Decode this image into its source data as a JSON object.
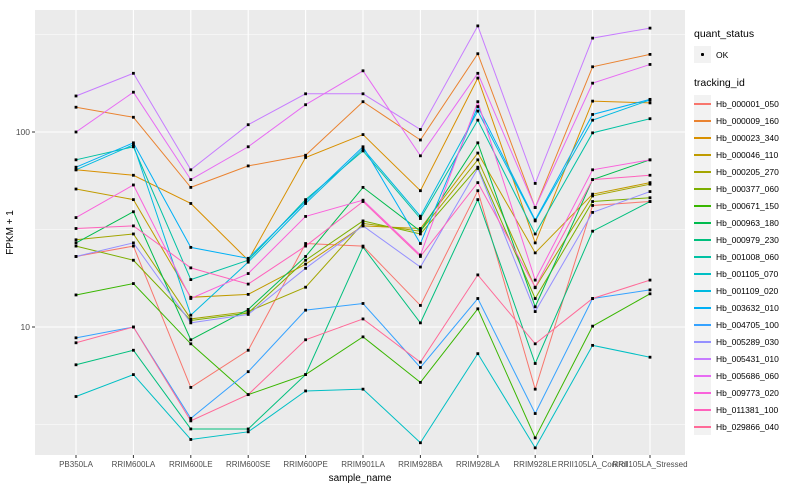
{
  "legend": {
    "quant_status_title": "quant_status",
    "ok_label": "OK",
    "tracking_id_title": "tracking_id"
  },
  "chart_data": {
    "type": "line",
    "title": "",
    "xlabel": "sample_name",
    "ylabel": "FPKM + 1",
    "y_scale": "log10",
    "y_ticks": [
      10,
      100
    ],
    "y_minor_ticks": [
      3.162,
      31.62,
      316.2
    ],
    "ylim": [
      2.2,
      430
    ],
    "grid": "on",
    "legend_position": "right",
    "panel_background": "#EBEBEB",
    "gridline_color": "#FFFFFF",
    "point_color": "#000000",
    "categories": [
      "PB350LA",
      "RRIM600LA",
      "RRIM600LE",
      "RRIM600SE",
      "RRIM600PE",
      "RRIM901LA",
      "RRIM928BA",
      "RRIM928LA",
      "RRIM928LE",
      "RRII105LA_Control",
      "RRII105LA_Stressed"
    ],
    "series": [
      {
        "name": "Hb_000001_050",
        "color": "#F8766D",
        "values": [
          23,
          26,
          4.9,
          7.6,
          26.8,
          26,
          12.9,
          50,
          4.8,
          42,
          44
        ]
      },
      {
        "name": "Hb_000009_160",
        "color": "#EA8331",
        "values": [
          134,
          119,
          52,
          67,
          76,
          143,
          91,
          252,
          41,
          216,
          250
        ]
      },
      {
        "name": "Hb_000023_340",
        "color": "#D89000",
        "values": [
          64,
          60,
          43,
          22,
          74,
          97,
          50,
          189,
          27,
          144,
          141
        ]
      },
      {
        "name": "Hb_000046_110",
        "color": "#C09B00",
        "values": [
          51,
          45,
          14.2,
          14.7,
          21,
          33,
          32,
          78,
          24,
          48,
          55
        ]
      },
      {
        "name": "Hb_000205_270",
        "color": "#A3A500",
        "values": [
          28,
          30,
          11,
          12,
          16,
          34,
          31,
          72,
          15.9,
          47,
          54
        ]
      },
      {
        "name": "Hb_000377_060",
        "color": "#7CAE00",
        "values": [
          26,
          22,
          10.8,
          11.8,
          22,
          35,
          30,
          66,
          14,
          44,
          46
        ]
      },
      {
        "name": "Hb_000671_150",
        "color": "#39B600",
        "values": [
          14.6,
          16.7,
          8.2,
          4.5,
          5.7,
          8.9,
          5.2,
          12.4,
          2.7,
          10.1,
          14.8
        ]
      },
      {
        "name": "Hb_000963_180",
        "color": "#00BB4E",
        "values": [
          27,
          39,
          8.6,
          12.3,
          23,
          52,
          31,
          88,
          12.7,
          57,
          72
        ]
      },
      {
        "name": "Hb_000979_230",
        "color": "#00BF7D",
        "values": [
          6.4,
          7.6,
          3.0,
          3.0,
          5.7,
          25.7,
          10.5,
          45,
          6.5,
          31,
          44
        ]
      },
      {
        "name": "Hb_001008_060",
        "color": "#00C1A3",
        "values": [
          72,
          84,
          17.5,
          22,
          45,
          80,
          36,
          115,
          30,
          99,
          117
        ]
      },
      {
        "name": "Hb_001105_070",
        "color": "#00BFC4",
        "values": [
          4.4,
          5.7,
          2.65,
          2.9,
          4.7,
          4.8,
          2.55,
          7.3,
          2.4,
          8.05,
          7.0
        ]
      },
      {
        "name": "Hb_001109_020",
        "color": "#00BAE0",
        "values": [
          64,
          86,
          11.5,
          21.5,
          43,
          82,
          37,
          128,
          35,
          115,
          146
        ]
      },
      {
        "name": "Hb_003632_010",
        "color": "#00B0F6",
        "values": [
          66,
          88,
          25.6,
          22.5,
          44,
          84,
          26.8,
          135,
          35.4,
          123,
          147
        ]
      },
      {
        "name": "Hb_004705_100",
        "color": "#35A2FF",
        "values": [
          8.8,
          10,
          3.4,
          5.9,
          12.2,
          13.2,
          6.2,
          14,
          3.6,
          14,
          15.5
        ]
      },
      {
        "name": "Hb_005289_030",
        "color": "#9590FF",
        "values": [
          23,
          27,
          10.5,
          11.6,
          20,
          33,
          20.3,
          65,
          12,
          38.7,
          49.5
        ]
      },
      {
        "name": "Hb_005431_010",
        "color": "#C77CFF",
        "values": [
          153,
          200,
          64,
          109,
          157,
          157,
          103,
          350,
          54.5,
          303,
          341
        ]
      },
      {
        "name": "Hb_005686_060",
        "color": "#E76BF3",
        "values": [
          100,
          160,
          57,
          84,
          138,
          206,
          75.5,
          200,
          41,
          178,
          222
        ]
      },
      {
        "name": "Hb_009773_020",
        "color": "#FA62DB",
        "values": [
          36.4,
          53.5,
          14,
          18.8,
          36.9,
          44.7,
          23.4,
          143,
          17.4,
          64,
          72
        ]
      },
      {
        "name": "Hb_011381_100",
        "color": "#FF62BC",
        "values": [
          32,
          33,
          20.1,
          16.6,
          26,
          44,
          23,
          55,
          16,
          57,
          60
        ]
      },
      {
        "name": "Hb_029866_040",
        "color": "#FF6A98",
        "values": [
          8.3,
          10,
          3.3,
          4.5,
          8.6,
          11,
          6.6,
          18.5,
          8.2,
          14,
          17.4
        ]
      }
    ]
  }
}
